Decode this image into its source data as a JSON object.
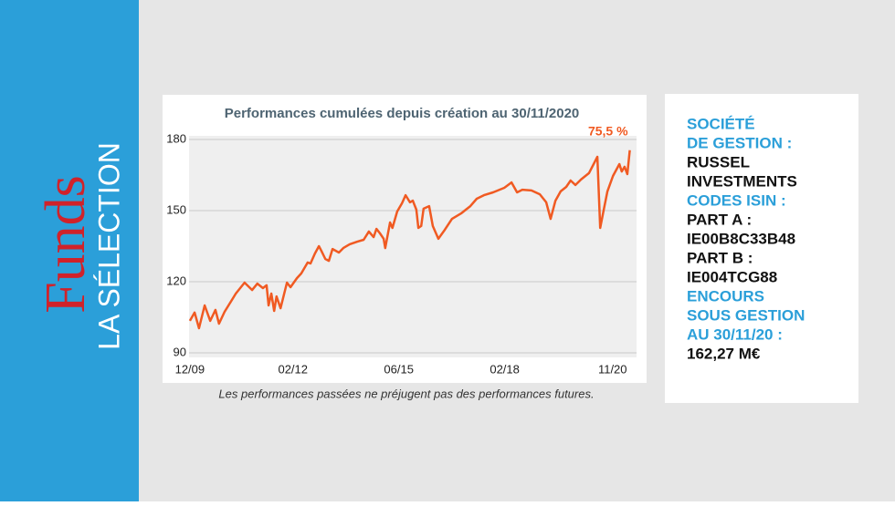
{
  "sidebar": {
    "title": "Funds",
    "subtitle": "LA SÉLECTION"
  },
  "chart_data": {
    "type": "line",
    "title": "Performances cumulées depuis création au 30/11/2020",
    "annotation": "75,5 %",
    "note": "Les performances passées ne préjugent pas des performances futures.",
    "x": [
      2009.92,
      2010.04,
      2010.15,
      2010.29,
      2010.43,
      2010.56,
      2010.65,
      2010.79,
      2011.07,
      2011.29,
      2011.48,
      2011.61,
      2011.75,
      2011.84,
      2011.89,
      2011.96,
      2012.03,
      2012.09,
      2012.19,
      2012.35,
      2012.44,
      2012.6,
      2012.71,
      2012.87,
      2012.94,
      2013.05,
      2013.15,
      2013.21,
      2013.31,
      2013.4,
      2013.49,
      2013.65,
      2013.76,
      2013.92,
      2014.11,
      2014.27,
      2014.4,
      2014.52,
      2014.59,
      2014.68,
      2014.77,
      2014.81,
      2014.93,
      2014.99,
      2015.11,
      2015.23,
      2015.32,
      2015.43,
      2015.5,
      2015.59,
      2015.64,
      2015.71,
      2015.77,
      2015.91,
      2016.0,
      2016.14,
      2016.3,
      2016.48,
      2016.71,
      2016.94,
      2017.1,
      2017.28,
      2017.51,
      2017.79,
      2017.97,
      2018.11,
      2018.24,
      2018.47,
      2018.68,
      2018.84,
      2018.95,
      2019.07,
      2019.2,
      2019.34,
      2019.45,
      2019.57,
      2019.71,
      2019.91,
      2020.12,
      2020.19,
      2020.28,
      2020.37,
      2020.51,
      2020.67,
      2020.73,
      2020.8,
      2020.87,
      2020.93
    ],
    "series": [
      {
        "color": "#f05a22",
        "values": [
          103.5,
          107.0,
          100.4,
          110.0,
          103.5,
          108.1,
          102.3,
          107.3,
          115.0,
          119.6,
          116.5,
          119.2,
          117.3,
          118.5,
          110.0,
          115.0,
          107.7,
          113.8,
          108.8,
          119.6,
          117.7,
          121.5,
          123.5,
          128.1,
          127.7,
          131.9,
          135.0,
          133.1,
          129.6,
          128.8,
          133.8,
          132.3,
          134.2,
          135.8,
          136.9,
          137.7,
          141.2,
          138.8,
          142.3,
          140.4,
          138.1,
          134.2,
          145.0,
          142.7,
          149.6,
          153.1,
          156.5,
          153.5,
          154.2,
          150.4,
          142.7,
          143.5,
          150.8,
          151.9,
          143.5,
          138.1,
          141.9,
          146.5,
          148.8,
          151.9,
          155.0,
          156.5,
          157.7,
          159.6,
          161.9,
          157.7,
          158.8,
          158.5,
          156.9,
          153.5,
          146.5,
          154.2,
          158.1,
          160.0,
          162.7,
          160.8,
          163.1,
          165.8,
          172.7,
          142.7,
          150.4,
          158.1,
          164.6,
          169.6,
          166.5,
          168.5,
          165.4,
          175.5
        ]
      }
    ],
    "xlim": [
      2009.9,
      2021.1
    ],
    "xticks": [
      {
        "value": 2009.92,
        "label": "12/09"
      },
      {
        "value": 2012.5,
        "label": "02/12"
      },
      {
        "value": 2015.15,
        "label": "06/15"
      },
      {
        "value": 2017.8,
        "label": "02/18"
      },
      {
        "value": 2020.5,
        "label": "11/20"
      }
    ],
    "ylim": [
      90,
      180
    ],
    "yticks": [
      90,
      120,
      150,
      180
    ],
    "grid": true
  },
  "panel": [
    {
      "heading": [
        "SOCIÉTÉ",
        "DE GESTION :"
      ],
      "lines": [
        "RUSSEL",
        "INVESTMENTS"
      ]
    },
    {
      "heading": [
        "CODES ISIN :"
      ],
      "lines": [
        "PART A :",
        "IE00B8C33B48",
        "PART B :",
        "IE004TCG88"
      ]
    },
    {
      "heading": [
        "ENCOURS",
        "SOUS GESTION",
        "AU 30/11/20 :"
      ],
      "lines": [
        "162,27 M€"
      ]
    }
  ]
}
